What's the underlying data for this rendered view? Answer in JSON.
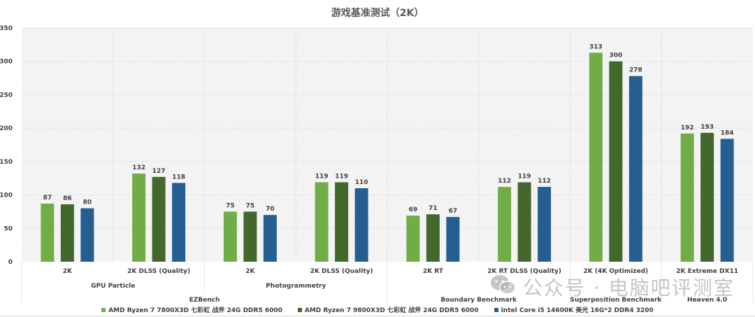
{
  "chart_data": {
    "type": "bar",
    "title": "游戏基准测试（2K）",
    "xlabel": "",
    "ylabel": "",
    "ylim": [
      0,
      350
    ],
    "yticks": [
      0,
      50,
      100,
      150,
      200,
      250,
      300,
      350
    ],
    "grid": true,
    "legend_position": "bottom",
    "categories": [
      "2K",
      "2K DLSS (Quality)",
      "2K",
      "2K DLSS (Quality)",
      "2K RT",
      "2K RT DLSS (Quality)",
      "2K (4K Optimized)",
      "2K Extreme DX11"
    ],
    "subgroups": [
      {
        "label": "GPU Particle",
        "span": [
          0,
          1
        ]
      },
      {
        "label": "Photogrammetry",
        "span": [
          2,
          3
        ]
      },
      {
        "label": "Boundary Benchmark",
        "span": [
          4,
          5
        ]
      },
      {
        "label": "Superposition Benchmark",
        "span": [
          6,
          6
        ]
      },
      {
        "label": "Heaven 4.0",
        "span": [
          7,
          7
        ]
      }
    ],
    "groups": [
      {
        "label": "EZBench",
        "span": [
          0,
          3
        ]
      }
    ],
    "series": [
      {
        "name": "AMD Ryzen 7 7800X3D 七彩虹 战斧 24G DDR5 6000",
        "color": "#70AD47",
        "values": [
          87,
          132,
          75,
          119,
          69,
          112,
          313,
          192
        ]
      },
      {
        "name": "AMD Ryzen 7 9800X3D 七彩虹 战斧 24G DDR5 6000",
        "color": "#43682B",
        "values": [
          86,
          127,
          75,
          119,
          71,
          119,
          300,
          193
        ]
      },
      {
        "name": "Intel Core i5 14600K 美光 16G*2 DDR4 3200",
        "color": "#255E91",
        "values": [
          80,
          118,
          70,
          110,
          67,
          112,
          278,
          184
        ]
      }
    ]
  },
  "watermark": {
    "text": "公众号 · 电脑吧评测室",
    "icon": "wechat-icon"
  }
}
